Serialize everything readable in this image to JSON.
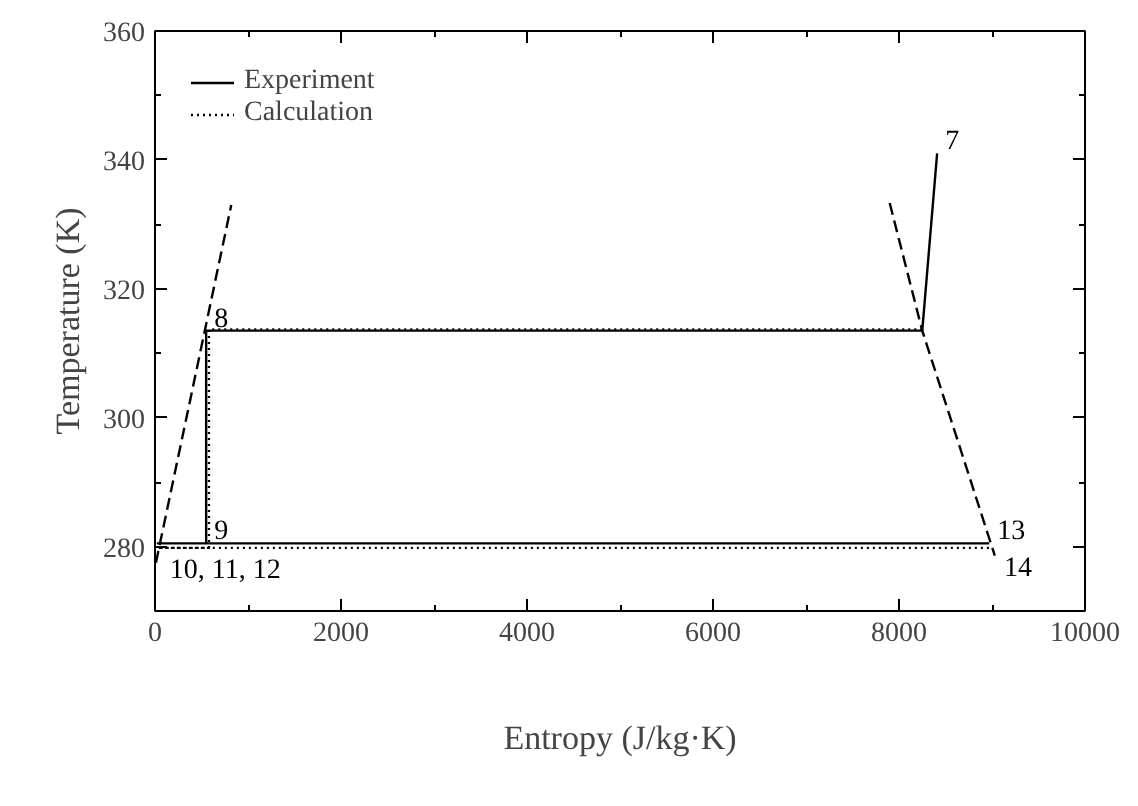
{
  "chart_data": {
    "type": "line",
    "xlabel": "Entropy (J/kg·K)",
    "ylabel": "Temperature (K)",
    "xlim": [
      0,
      10000
    ],
    "ylim": [
      270,
      360
    ],
    "xticks": [
      0,
      2000,
      4000,
      6000,
      8000,
      10000
    ],
    "yticks": [
      280,
      300,
      320,
      340,
      360
    ],
    "grid": false,
    "legend": "top left",
    "marker": "none",
    "series": [
      {
        "name": "Experiment",
        "color": "#000000",
        "line_style": "solid",
        "x": [
          8410,
          8250,
          550,
          550,
          30,
          8970
        ],
        "values": [
          341,
          313.5,
          313.5,
          280.5,
          280.5,
          280.5
        ]
      },
      {
        "name": "Calculation",
        "color": "#000000",
        "line_style": "dotted",
        "x": [
          8250,
          580,
          580,
          30,
          9000
        ],
        "values": [
          313.7,
          313.7,
          279.8,
          279.8,
          279.8
        ]
      },
      {
        "color": "#000000",
        "line_style": "dashed",
        "x": [
          10,
          820
        ],
        "values": [
          277.5,
          333
        ]
      },
      {
        "color": "#000000",
        "line_style": "dashed",
        "x": [
          7900,
          8250,
          9030
        ],
        "values": [
          333.3,
          313.5,
          278.6
        ]
      }
    ],
    "annotations": [
      {
        "text": "7",
        "x": 8410,
        "y": 341
      },
      {
        "text": "8",
        "x": 550,
        "y": 313.5
      },
      {
        "text": "9",
        "x": 550,
        "y": 280.5
      },
      {
        "text": "10, 11, 12",
        "x": 30,
        "y": 279.8
      },
      {
        "text": "13",
        "x": 8970,
        "y": 280.5
      },
      {
        "text": "14",
        "x": 9000,
        "y": 279.8
      }
    ]
  }
}
